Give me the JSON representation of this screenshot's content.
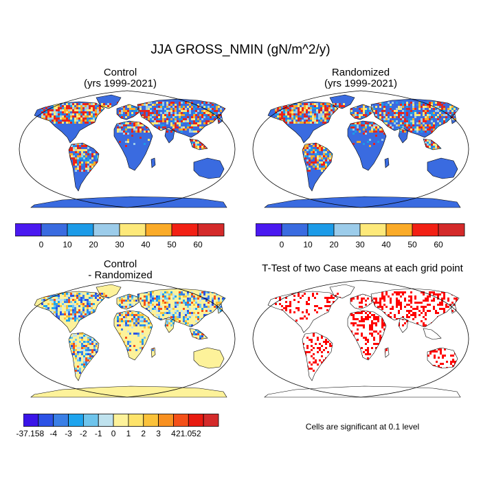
{
  "figure": {
    "title": "JJA GROSS_NMIN (gN/m^2/y)"
  },
  "panels": {
    "control": {
      "title_line1": "Control",
      "title_line2": "(yrs 1999-2021)"
    },
    "randomized": {
      "title_line1": "Randomized",
      "title_line2": "(yrs 1999-2021)"
    },
    "difference": {
      "title_line1": "Control",
      "title_line2": "- Randomized"
    },
    "ttest": {
      "title": "T-Test of two Case means at each grid point",
      "note": "Cells are significant at 0.1 level"
    }
  },
  "chart_data": [
    {
      "type": "heatmap",
      "title": "Control (yrs 1999-2021)",
      "colorbar": {
        "colors": [
          "#4a19f0",
          "#3a6be0",
          "#1c9be8",
          "#9cccea",
          "#fde97a",
          "#fbab28",
          "#f22014",
          "#d42a2a"
        ],
        "labels": [
          "0",
          "10",
          "20",
          "30",
          "40",
          "50",
          "60"
        ]
      }
    },
    {
      "type": "heatmap",
      "title": "Randomized (yrs 1999-2021)",
      "colorbar": {
        "colors": [
          "#4a19f0",
          "#3a6be0",
          "#1c9be8",
          "#9cccea",
          "#fde97a",
          "#fbab28",
          "#f22014",
          "#d42a2a"
        ],
        "labels": [
          "0",
          "10",
          "20",
          "30",
          "40",
          "50",
          "60"
        ]
      }
    },
    {
      "type": "heatmap",
      "title": "Control - Randomized",
      "colorbar": {
        "colors": [
          "#3a14e8",
          "#2c52e6",
          "#3a7fe6",
          "#1ea4ee",
          "#6ec4ec",
          "#bfe2ee",
          "#fdf29a",
          "#fde36a",
          "#fbc23a",
          "#f89020",
          "#f45018",
          "#e81a10",
          "#d42a2a"
        ],
        "labels": [
          "-37.158",
          "-4",
          "-3",
          "-2",
          "-1",
          "0",
          "1",
          "2",
          "3",
          "4",
          "21.052"
        ]
      }
    },
    {
      "type": "heatmap",
      "title": "T-Test of two Case means at each grid point",
      "significance_color": "#ff0000",
      "significance_level": "0.1"
    }
  ]
}
